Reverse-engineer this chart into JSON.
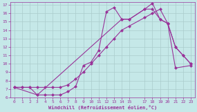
{
  "xlabel": "Windchill (Refroidissement éolien,°C)",
  "bg_color": "#c5e8e8",
  "line_color": "#993399",
  "grid_color": "#aacccc",
  "xlim": [
    -0.5,
    23.5
  ],
  "ylim": [
    6,
    17.3
  ],
  "xticks": [
    0,
    1,
    2,
    3,
    4,
    5,
    6,
    7,
    8,
    9,
    10,
    11,
    12,
    13,
    14,
    15,
    17,
    18,
    19,
    20,
    21,
    22,
    23
  ],
  "yticks": [
    6,
    7,
    8,
    9,
    10,
    11,
    12,
    13,
    14,
    15,
    16,
    17
  ],
  "line1_x": [
    0,
    1,
    2,
    3,
    4,
    5,
    6,
    7,
    8,
    9,
    10,
    11,
    12,
    13,
    14,
    15,
    17,
    18,
    19,
    20,
    21,
    22,
    23
  ],
  "line1_y": [
    7.2,
    7.2,
    7.2,
    6.3,
    6.3,
    6.3,
    6.3,
    6.7,
    7.3,
    9.8,
    10.2,
    11.6,
    16.2,
    16.7,
    15.3,
    15.3,
    16.5,
    17.2,
    15.3,
    14.8,
    12.0,
    11.0,
    10.0
  ],
  "line2_x": [
    0,
    1,
    2,
    3,
    4,
    5,
    6,
    7,
    8,
    9,
    10,
    11,
    12,
    13,
    14,
    15,
    17,
    18,
    19,
    20,
    21,
    22,
    23
  ],
  "line2_y": [
    7.2,
    7.2,
    7.2,
    7.2,
    7.2,
    7.2,
    7.2,
    7.5,
    8.2,
    9.0,
    10.0,
    11.0,
    12.0,
    13.0,
    14.0,
    14.5,
    15.5,
    16.0,
    16.5,
    14.8,
    12.0,
    11.0,
    10.0
  ],
  "line3_x": [
    0,
    3,
    14,
    15,
    17,
    18,
    19,
    20,
    21,
    23
  ],
  "line3_y": [
    7.2,
    6.3,
    15.3,
    15.3,
    16.5,
    16.5,
    15.3,
    14.8,
    9.5,
    9.8
  ]
}
